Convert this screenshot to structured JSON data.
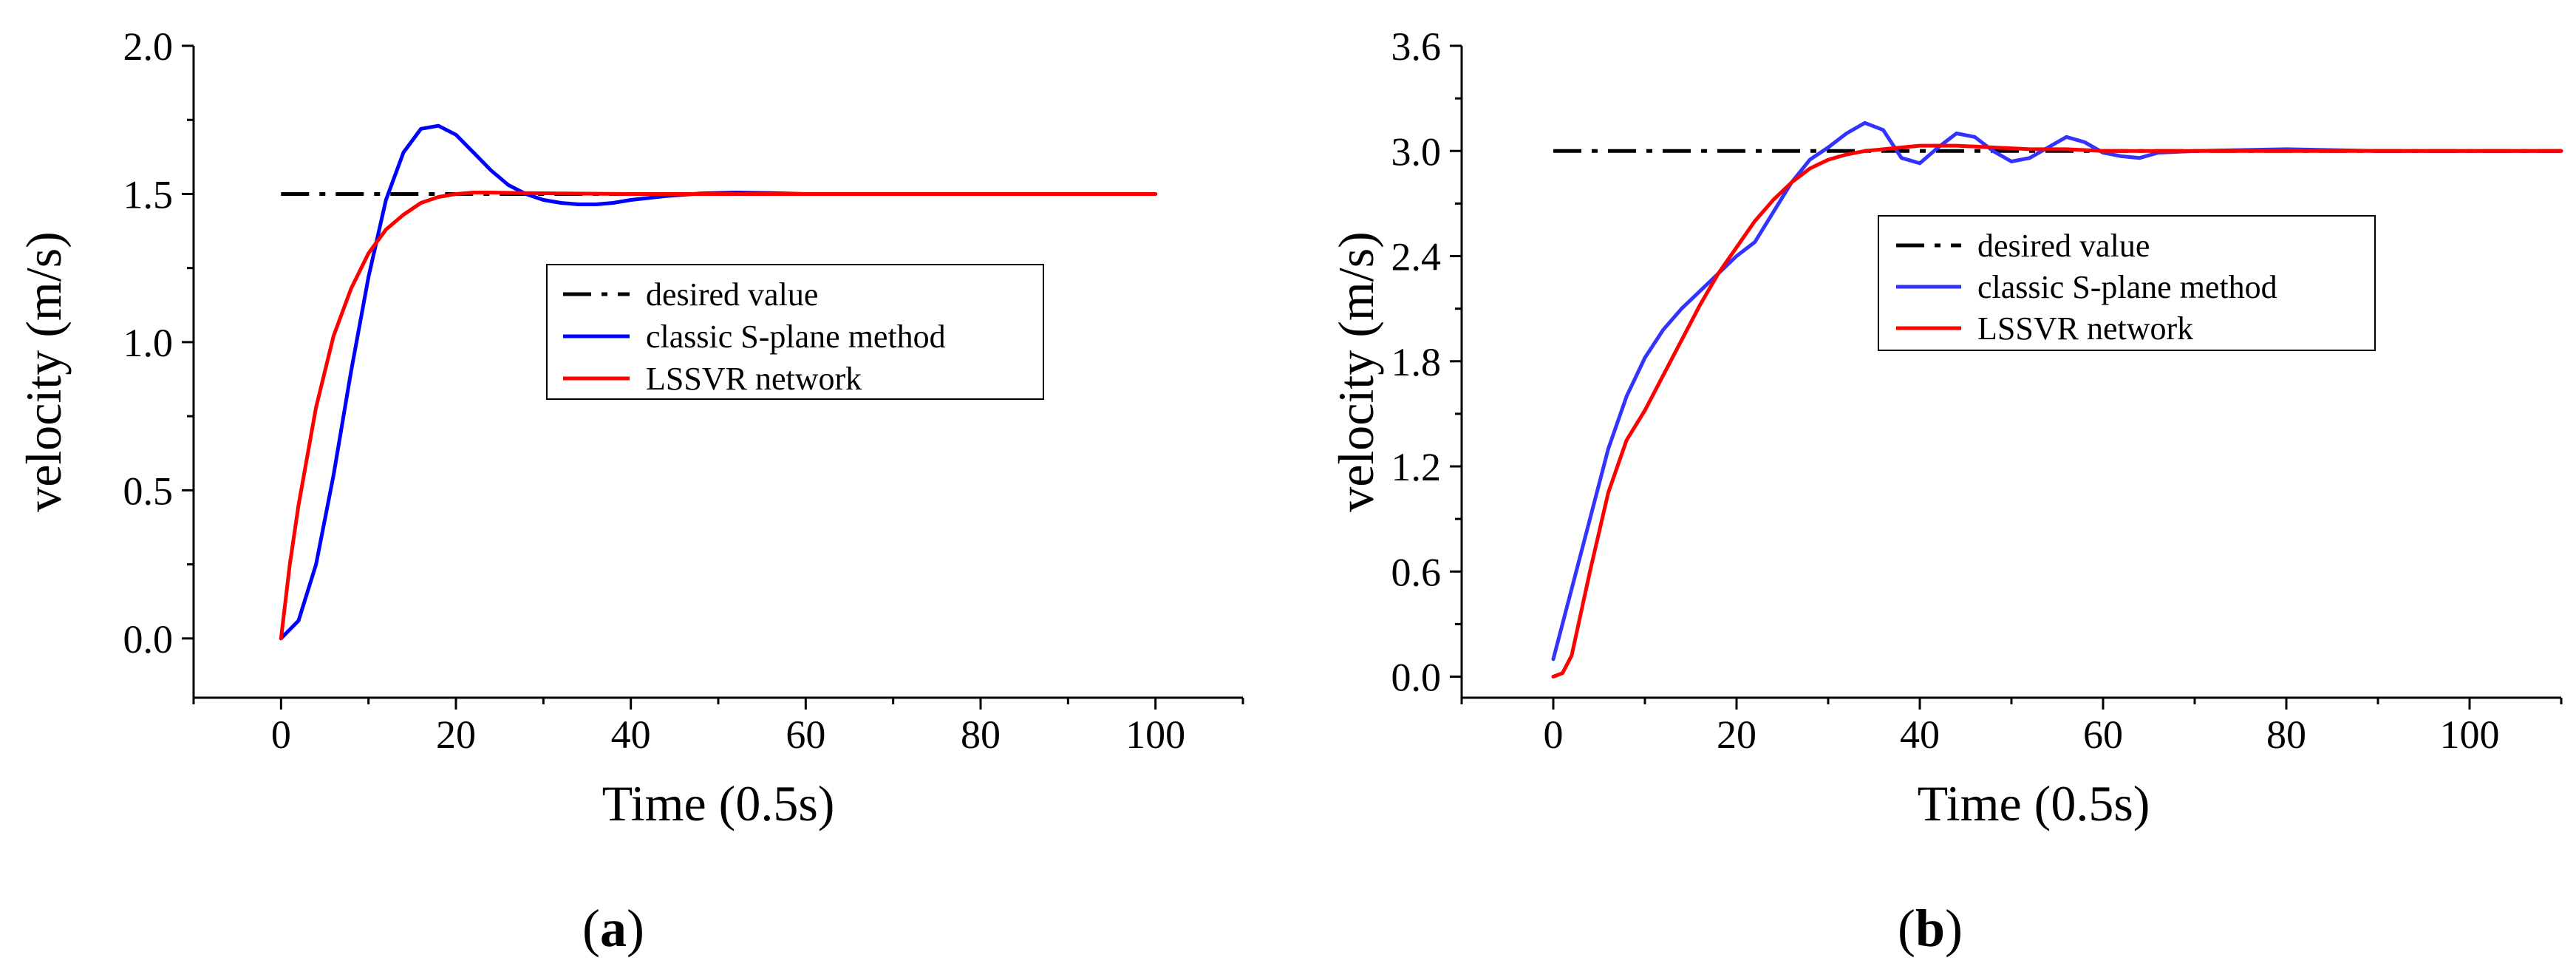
{
  "chart_data": [
    {
      "type": "line",
      "panel_label": "a",
      "title": "",
      "xlabel": "Time (0.5s)",
      "ylabel": "velocity (m/s)",
      "xlim": [
        -10,
        110
      ],
      "ylim": [
        -0.2,
        2.0
      ],
      "xticks": [
        0,
        20,
        40,
        60,
        80,
        100
      ],
      "xtick_labels": [
        "0",
        "20",
        "40",
        "60",
        "80",
        "100"
      ],
      "yticks": [
        0.0,
        0.5,
        1.0,
        1.5,
        2.0
      ],
      "ytick_labels": [
        "0.0",
        "0.5",
        "1.0",
        "1.5",
        "2.0"
      ],
      "legend_position": "center-right",
      "series": [
        {
          "name": "desired value",
          "color": "#000000",
          "style": "dashdot",
          "x": [
            0,
            100
          ],
          "y": [
            1.5,
            1.5
          ]
        },
        {
          "name": "classic S-plane method",
          "color": "#0000ff",
          "style": "solid",
          "x": [
            0,
            2,
            4,
            6,
            8,
            10,
            12,
            14,
            16,
            18,
            20,
            22,
            24,
            26,
            28,
            30,
            32,
            34,
            36,
            38,
            40,
            44,
            48,
            52,
            56,
            60,
            70,
            80,
            90,
            100
          ],
          "y": [
            0.0,
            0.06,
            0.25,
            0.55,
            0.9,
            1.22,
            1.48,
            1.64,
            1.72,
            1.73,
            1.7,
            1.64,
            1.58,
            1.53,
            1.5,
            1.48,
            1.47,
            1.465,
            1.465,
            1.47,
            1.48,
            1.493,
            1.502,
            1.505,
            1.503,
            1.5,
            1.5,
            1.5,
            1.5,
            1.5
          ]
        },
        {
          "name": "LSSVR network",
          "color": "#ff0000",
          "style": "solid",
          "x": [
            0,
            1,
            2,
            4,
            6,
            8,
            10,
            12,
            14,
            16,
            18,
            20,
            22,
            24,
            28,
            32,
            36,
            40,
            50,
            60,
            80,
            100
          ],
          "y": [
            0.0,
            0.25,
            0.45,
            0.78,
            1.02,
            1.18,
            1.3,
            1.38,
            1.43,
            1.47,
            1.49,
            1.5,
            1.505,
            1.505,
            1.503,
            1.502,
            1.501,
            1.5,
            1.5,
            1.5,
            1.5,
            1.5
          ]
        }
      ]
    },
    {
      "type": "line",
      "panel_label": "b",
      "title": "",
      "xlabel": "Time (0.5s)",
      "ylabel": "velocity (m/s)",
      "xlim": [
        -10,
        110
      ],
      "ylim": [
        -0.12,
        3.6
      ],
      "xticks": [
        0,
        20,
        40,
        60,
        80,
        100
      ],
      "xtick_labels": [
        "0",
        "20",
        "40",
        "60",
        "80",
        "100"
      ],
      "yticks": [
        0.0,
        0.6,
        1.2,
        1.8,
        2.4,
        3.0,
        3.6
      ],
      "ytick_labels": [
        "0.0",
        "0.6",
        "1.2",
        "1.8",
        "2.4",
        "3.0",
        "3.6"
      ],
      "legend_position": "center-right",
      "series": [
        {
          "name": "desired value",
          "color": "#000000",
          "style": "dashdot",
          "x": [
            0,
            110
          ],
          "y": [
            3.0,
            3.0
          ]
        },
        {
          "name": "classic S-plane method",
          "color": "#3333ff",
          "style": "solid",
          "x": [
            0,
            2,
            4,
            6,
            8,
            10,
            12,
            14,
            16,
            18,
            20,
            22,
            24,
            26,
            28,
            30,
            32,
            34,
            36,
            38,
            40,
            42,
            44,
            46,
            48,
            50,
            52,
            54,
            56,
            58,
            60,
            62,
            64,
            66,
            70,
            80,
            90,
            100,
            110
          ],
          "y": [
            0.1,
            0.5,
            0.9,
            1.3,
            1.6,
            1.82,
            1.98,
            2.1,
            2.2,
            2.3,
            2.4,
            2.48,
            2.65,
            2.82,
            2.95,
            3.02,
            3.1,
            3.16,
            3.12,
            2.96,
            2.93,
            3.02,
            3.1,
            3.08,
            3.0,
            2.94,
            2.96,
            3.02,
            3.08,
            3.05,
            2.99,
            2.97,
            2.96,
            2.99,
            3.0,
            3.01,
            3.0,
            3.0,
            3.0
          ]
        },
        {
          "name": "LSSVR network",
          "color": "#ff0000",
          "style": "solid",
          "x": [
            0,
            1,
            2,
            4,
            6,
            8,
            10,
            12,
            14,
            16,
            18,
            20,
            22,
            24,
            26,
            28,
            30,
            32,
            34,
            36,
            38,
            40,
            44,
            48,
            52,
            56,
            60,
            64,
            70,
            80,
            90,
            100,
            110
          ],
          "y": [
            0.0,
            0.02,
            0.12,
            0.6,
            1.05,
            1.35,
            1.52,
            1.72,
            1.92,
            2.12,
            2.3,
            2.45,
            2.6,
            2.72,
            2.82,
            2.9,
            2.95,
            2.98,
            3.0,
            3.01,
            3.02,
            3.03,
            3.03,
            3.02,
            3.01,
            3.01,
            3.0,
            3.0,
            3.0,
            3.0,
            3.0,
            3.0,
            3.0
          ]
        }
      ]
    }
  ]
}
